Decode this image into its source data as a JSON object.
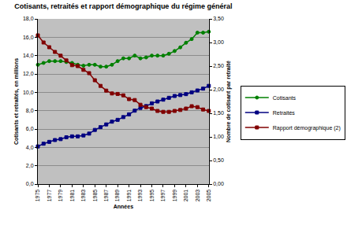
{
  "chart_data": {
    "type": "line",
    "title": "Cotisants, retraités et rapport démographique du régime général",
    "x_label": "Années",
    "y_label": "Cotisants et retraités, en millions",
    "y2_label": "Nombre de cotisant par retraité",
    "x": [
      1975,
      1976,
      1977,
      1978,
      1979,
      1980,
      1981,
      1982,
      1983,
      1984,
      1985,
      1986,
      1987,
      1988,
      1989,
      1990,
      1991,
      1992,
      1993,
      1994,
      1995,
      1996,
      1997,
      1998,
      1999,
      2000,
      2001,
      2002,
      2003,
      2004,
      2005
    ],
    "xlim": [
      1975,
      2005
    ],
    "xticks": [
      1975,
      1977,
      1979,
      1981,
      1983,
      1985,
      1987,
      1989,
      1991,
      1993,
      1995,
      1997,
      1999,
      2001,
      2003,
      2005
    ],
    "ylim": [
      0,
      18
    ],
    "yticks": [
      {
        "value": 0,
        "label": "0,0"
      },
      {
        "value": 2,
        "label": "2,0"
      },
      {
        "value": 4,
        "label": "4,0"
      },
      {
        "value": 6,
        "label": "6,0"
      },
      {
        "value": 8,
        "label": "8,0"
      },
      {
        "value": 10,
        "label": "10,0"
      },
      {
        "value": 12,
        "label": "12,0"
      },
      {
        "value": 14,
        "label": "14,0"
      },
      {
        "value": 16,
        "label": "16,0"
      },
      {
        "value": 18,
        "label": "18,0"
      }
    ],
    "y2lim": [
      0,
      3.5
    ],
    "y2ticks": [
      {
        "value": 0,
        "label": "0,00"
      },
      {
        "value": 0.5,
        "label": "0,50"
      },
      {
        "value": 1,
        "label": "1,00"
      },
      {
        "value": 1.5,
        "label": "1,50"
      },
      {
        "value": 2,
        "label": "2,00"
      },
      {
        "value": 2.5,
        "label": "2,50"
      },
      {
        "value": 3,
        "label": "3,00"
      },
      {
        "value": 3.5,
        "label": "3,50"
      }
    ],
    "grid": true,
    "legend": "right",
    "series": [
      {
        "name": "Cotisants",
        "color": "#008000",
        "marker": "circle",
        "values": [
          13.0,
          13.2,
          13.4,
          13.4,
          13.4,
          13.3,
          13.2,
          13.0,
          12.9,
          13.0,
          13.0,
          12.8,
          12.8,
          13.0,
          13.4,
          13.7,
          13.7,
          14.0,
          13.7,
          13.8,
          14.0,
          14.0,
          14.0,
          14.2,
          14.5,
          14.9,
          15.4,
          15.8,
          16.5,
          16.5,
          16.6
        ]
      },
      {
        "name": "Retraités",
        "color": "#000080",
        "marker": "square",
        "values": [
          4.1,
          4.4,
          4.6,
          4.8,
          4.9,
          5.1,
          5.2,
          5.2,
          5.3,
          5.5,
          5.9,
          6.2,
          6.5,
          6.8,
          7.0,
          7.3,
          7.6,
          8.0,
          8.3,
          8.5,
          8.8,
          9.0,
          9.2,
          9.4,
          9.6,
          9.7,
          9.8,
          10.0,
          10.2,
          10.4,
          10.7
        ]
      },
      {
        "name": "Rapport démographique (2)",
        "color": "#800000",
        "marker": "square",
        "axis": "y2",
        "values": [
          3.15,
          3.0,
          2.9,
          2.8,
          2.72,
          2.62,
          2.52,
          2.5,
          2.42,
          2.35,
          2.2,
          2.08,
          1.98,
          1.92,
          1.91,
          1.88,
          1.8,
          1.78,
          1.68,
          1.63,
          1.6,
          1.55,
          1.53,
          1.53,
          1.55,
          1.57,
          1.6,
          1.65,
          1.63,
          1.58,
          1.55
        ]
      }
    ]
  }
}
